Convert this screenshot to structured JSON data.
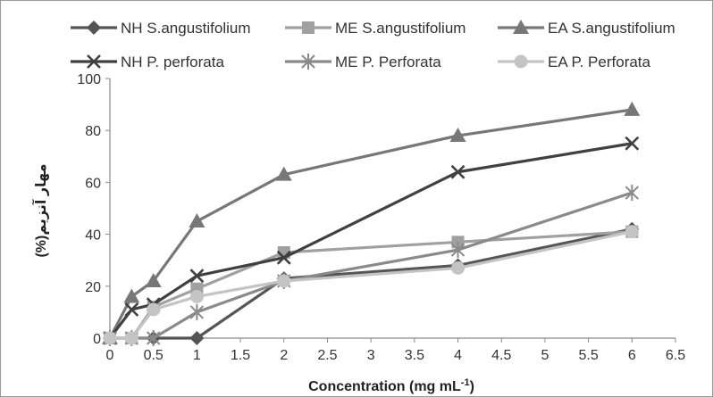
{
  "chart_data": {
    "type": "line",
    "title": "",
    "xlabel": "Concentration (mg mL",
    "xlabel_sup": "-1",
    "xlabel_end": ")",
    "ylabel": "(%)مهار آنزیم",
    "xlim": [
      0,
      6.5
    ],
    "ylim": [
      0,
      100
    ],
    "x_ticks": [
      "0",
      "0.5",
      "1",
      "1.5",
      "2",
      "2.5",
      "3",
      "3.5",
      "4",
      "4.5",
      "5",
      "5.5",
      "6",
      "6.5"
    ],
    "y_ticks": [
      "0",
      "20",
      "40",
      "60",
      "80",
      "100"
    ],
    "grid": false,
    "legend_position": "top",
    "series": [
      {
        "name": "NH S.angustifolium",
        "marker": "diamond",
        "color": "#555555",
        "x": [
          0,
          0.25,
          0.5,
          1,
          2,
          4,
          6
        ],
        "y": [
          0,
          0,
          0,
          0,
          23,
          28,
          42
        ]
      },
      {
        "name": "ME S.angustifolium",
        "marker": "square",
        "color": "#a0a0a0",
        "x": [
          0,
          0.25,
          0.5,
          1,
          2,
          4,
          6
        ],
        "y": [
          0,
          0,
          12,
          19,
          33,
          37,
          41
        ]
      },
      {
        "name": "EA S.angustifolium",
        "marker": "triangle",
        "color": "#777777",
        "x": [
          0,
          0.25,
          0.5,
          1,
          2,
          4,
          6
        ],
        "y": [
          0,
          16,
          22,
          45,
          63,
          78,
          88
        ]
      },
      {
        "name": "NH P. perforata",
        "marker": "x",
        "color": "#404040",
        "x": [
          0,
          0.25,
          0.5,
          1,
          2,
          4,
          6
        ],
        "y": [
          0,
          11,
          13,
          24,
          31,
          64,
          75
        ]
      },
      {
        "name": "ME P. Perforata",
        "marker": "star",
        "color": "#8a8a8a",
        "x": [
          0,
          0.25,
          0.5,
          1,
          2,
          4,
          6
        ],
        "y": [
          0,
          0,
          0,
          10,
          22,
          34,
          56
        ]
      },
      {
        "name": "EA P. Perforata",
        "marker": "circle",
        "color": "#c4c4c4",
        "x": [
          0,
          0.25,
          0.5,
          1,
          2,
          4,
          6
        ],
        "y": [
          0,
          0,
          11,
          16,
          22,
          27,
          41
        ]
      }
    ]
  }
}
